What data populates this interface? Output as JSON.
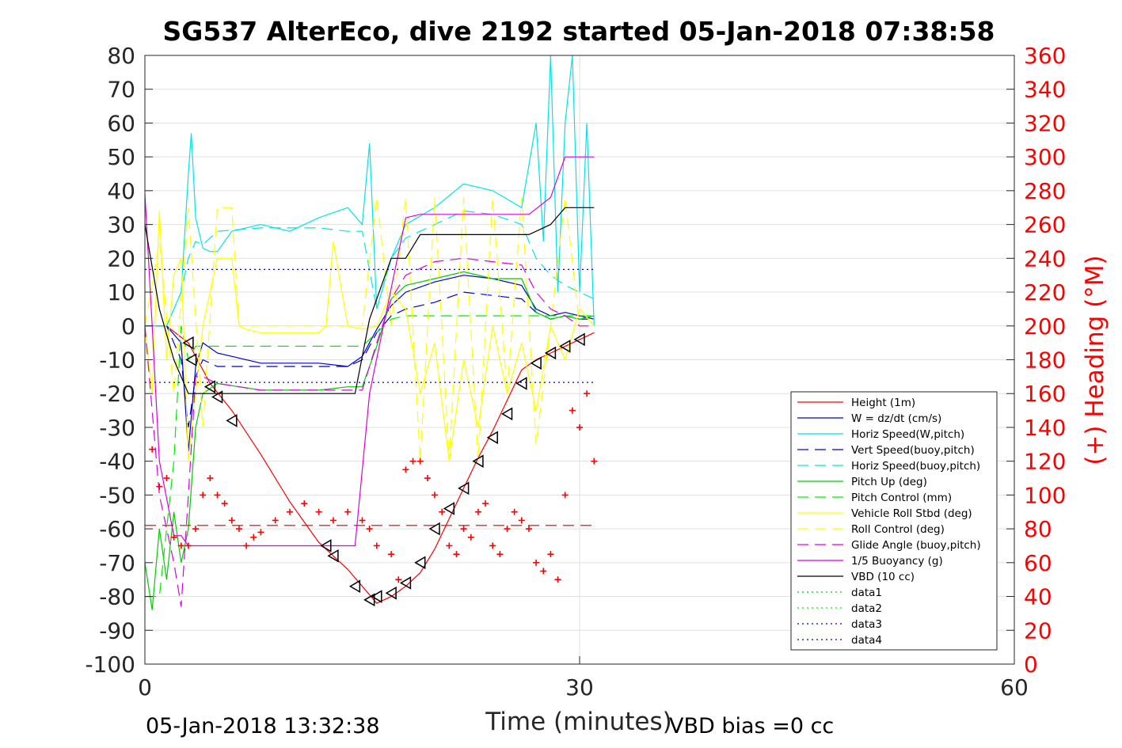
{
  "chart_data": {
    "type": "line",
    "title": "SG537 AlterEco, dive 2192 started 05-Jan-2018 07:38:58",
    "xlabel": "Time (minutes)",
    "ylabel_right": "(+) Heading (°M)",
    "footer_left": "05-Jan-2018 13:32:38",
    "footer_right": "VBD bias =0 cc",
    "xlim": [
      0,
      60
    ],
    "ylim": [
      -100,
      80
    ],
    "ylim_right": [
      0,
      360
    ],
    "x_ticks": [
      "0",
      "30",
      "60"
    ],
    "y_ticks": [
      "80",
      "70",
      "60",
      "50",
      "40",
      "30",
      "20",
      "10",
      "0",
      "-10",
      "-20",
      "-30",
      "-40",
      "-50",
      "-60",
      "-70",
      "-80",
      "-90",
      "-100"
    ],
    "y_ticks_right": [
      "360",
      "340",
      "320",
      "300",
      "280",
      "260",
      "240",
      "220",
      "200",
      "180",
      "160",
      "140",
      "120",
      "100",
      "80",
      "60",
      "40",
      "20",
      "0"
    ],
    "grid": true,
    "legend_position": "bottom-right",
    "colors": {
      "height": "#ff0000",
      "w": "#0000cc",
      "horiz_speed_w": "#00e5e5",
      "vert_speed_buoy": "#0000cc",
      "horiz_speed_buoy": "#00e5e5",
      "pitch_up": "#00cc00",
      "pitch_control": "#00ee00",
      "vehicle_roll": "#ffff00",
      "roll_control": "#ffff00",
      "glide_angle": "#dd00dd",
      "buoyancy": "#dd00dd",
      "vbd": "#000000",
      "heading": "#ff0000"
    },
    "legend": [
      {
        "label": "Height (1m)",
        "color": "#ff0000",
        "dash": "solid"
      },
      {
        "label": "W = dz/dt (cm/s)",
        "color": "#0000cc",
        "dash": "solid"
      },
      {
        "label": "Horiz Speed(W,pitch)",
        "color": "#00e5e5",
        "dash": "solid"
      },
      {
        "label": "Vert Speed(buoy,pitch)",
        "color": "#0000cc",
        "dash": "dashed"
      },
      {
        "label": "Horiz Speed(buoy,pitch)",
        "color": "#00e5e5",
        "dash": "dashed"
      },
      {
        "label": "Pitch Up (deg)",
        "color": "#00cc00",
        "dash": "solid"
      },
      {
        "label": "Pitch Control (mm)",
        "color": "#00ee00",
        "dash": "dashed"
      },
      {
        "label": "Vehicle Roll Stbd (deg)",
        "color": "#ffff00",
        "dash": "solid"
      },
      {
        "label": "Roll Control (deg)",
        "color": "#ffff00",
        "dash": "dashed"
      },
      {
        "label": "Glide Angle (buoy,pitch)",
        "color": "#dd00dd",
        "dash": "dashed"
      },
      {
        "label": "1/5 Buoyancy (g)",
        "color": "#dd00dd",
        "dash": "solid"
      },
      {
        "label": "VBD (10 cc)",
        "color": "#000000",
        "dash": "solid"
      },
      {
        "label": "data1",
        "color": "#00cc00",
        "dash": "dotted"
      },
      {
        "label": "data2",
        "color": "#00ee00",
        "dash": "dotted"
      },
      {
        "label": "data3",
        "color": "#0000cc",
        "dash": "dotted"
      },
      {
        "label": "data4",
        "color": "#0000cc",
        "dash": "dotted"
      }
    ],
    "series": [
      {
        "key": "height",
        "dash": "solid",
        "color": "#ff0000",
        "x": [
          0,
          1.5,
          3,
          4.5,
          6,
          8,
          10,
          12,
          14,
          15,
          16,
          17,
          18,
          19,
          20,
          21,
          22,
          23,
          24,
          25,
          26,
          27,
          28,
          29,
          30,
          31
        ],
        "y": [
          0,
          0,
          -5,
          -17,
          -25,
          -38,
          -52,
          -64,
          -72,
          -77,
          -82,
          -80,
          -77,
          -73,
          -66,
          -57,
          -48,
          -39,
          -31,
          -22,
          -13,
          -10,
          -8,
          -6,
          -4,
          -2
        ]
      },
      {
        "key": "w",
        "dash": "solid",
        "color": "#0000cc",
        "x": [
          0,
          1.5,
          2.5,
          3,
          3.5,
          4,
          5,
          8,
          12,
          14,
          15,
          16,
          17,
          18,
          20,
          22,
          24,
          26,
          27,
          28,
          29,
          30,
          31
        ],
        "y": [
          0,
          0,
          -5,
          -37,
          -12,
          -5,
          -8,
          -11,
          -11,
          -12,
          -9,
          -1,
          6,
          10,
          13,
          15,
          14,
          12,
          5,
          3,
          4,
          3,
          2
        ]
      },
      {
        "key": "horiz_speed_w",
        "dash": "solid",
        "color": "#00e5e5",
        "x": [
          0,
          1.5,
          2.5,
          3,
          3.2,
          3.5,
          4,
          4.5,
          5,
          6,
          8,
          10,
          12,
          14,
          15,
          15.5,
          16,
          17,
          18,
          20,
          22,
          24,
          26,
          27,
          27.5,
          28,
          28.5,
          29,
          29.5,
          30,
          30.5,
          31
        ],
        "y": [
          0,
          0,
          10,
          45,
          57,
          32,
          23,
          22,
          22,
          28,
          30,
          28,
          32,
          35,
          30,
          54,
          5,
          20,
          30,
          35,
          42,
          40,
          35,
          60,
          25,
          80,
          10,
          60,
          80,
          10,
          60,
          0
        ]
      },
      {
        "key": "vert_speed_buoy",
        "dash": "dashed",
        "color": "#0000cc",
        "x": [
          0,
          1.5,
          2.5,
          3,
          3.5,
          4,
          5,
          8,
          12,
          14,
          15,
          16,
          17,
          18,
          20,
          22,
          24,
          26,
          27,
          28,
          29,
          30,
          31
        ],
        "y": [
          0,
          0,
          -10,
          -30,
          -15,
          -10,
          -12,
          -12,
          -12,
          -12,
          -10,
          -2,
          3,
          5,
          7,
          10,
          9,
          8,
          4,
          2,
          3,
          2,
          2
        ]
      },
      {
        "key": "horiz_speed_buoy",
        "dash": "dashed",
        "color": "#00e5e5",
        "x": [
          0,
          1.5,
          2.5,
          3,
          3.5,
          4,
          5,
          8,
          12,
          14,
          15,
          16,
          17,
          18,
          20,
          22,
          24,
          26,
          27,
          28,
          29,
          30,
          31
        ],
        "y": [
          0,
          0,
          10,
          20,
          25,
          24,
          28,
          29,
          29,
          28,
          28,
          5,
          20,
          26,
          30,
          34,
          33,
          30,
          20,
          15,
          12,
          10,
          8
        ]
      },
      {
        "key": "pitch_up",
        "dash": "solid",
        "color": "#00cc00",
        "x": [
          0,
          0.5,
          1,
          1.5,
          2,
          2.5,
          3,
          3.5,
          4,
          5,
          8,
          12,
          14,
          15,
          16,
          17,
          18,
          20,
          22,
          24,
          26,
          27,
          28,
          29,
          30,
          31
        ],
        "y": [
          -70,
          -84,
          -60,
          -75,
          -55,
          -70,
          -60,
          -30,
          -20,
          -17,
          -19,
          -19,
          -18,
          -18,
          -6,
          8,
          12,
          14,
          16,
          14,
          14,
          4,
          2,
          3,
          2,
          3
        ]
      },
      {
        "key": "pitch_control",
        "dash": "dashed",
        "color": "#00ee00",
        "x": [
          0,
          1,
          2,
          2.5,
          3,
          3.5,
          4,
          5,
          8,
          12,
          14,
          15,
          16,
          17,
          18,
          20,
          22,
          24,
          26,
          27,
          28,
          29,
          30,
          31
        ],
        "y": [
          -80,
          -80,
          -40,
          0,
          -10,
          -6,
          -6,
          -6,
          -6,
          -6,
          -6,
          -6,
          -2,
          2,
          3,
          3,
          3,
          3,
          3,
          3,
          3,
          3,
          3,
          3
        ]
      },
      {
        "key": "vehicle_roll",
        "dash": "solid",
        "color": "#ffff00",
        "x": [
          0,
          0.5,
          1,
          1.5,
          2,
          2.5,
          3,
          4,
          5,
          6,
          6.5,
          7,
          8,
          10,
          12,
          12.5,
          13,
          14,
          15,
          16,
          17,
          18,
          19,
          20,
          21,
          22,
          23,
          24,
          25,
          26,
          27,
          28,
          29,
          30,
          31
        ],
        "y": [
          0,
          -20,
          34,
          -10,
          15,
          20,
          -40,
          0,
          20,
          20,
          0,
          -1,
          -2,
          -2,
          -2,
          0,
          25,
          0,
          -1,
          0,
          10,
          5,
          -20,
          -5,
          -40,
          -10,
          -30,
          0,
          -20,
          -5,
          -25,
          0,
          -10,
          5,
          0
        ]
      },
      {
        "key": "roll_control",
        "dash": "dashed",
        "color": "#ffff00",
        "x": [
          0,
          1,
          2,
          3,
          4,
          5,
          6,
          6.5,
          7,
          8,
          10,
          12,
          13,
          14,
          15,
          16,
          17,
          18,
          19,
          20,
          21,
          22,
          23,
          24,
          25,
          26,
          27,
          28,
          29,
          30,
          31
        ],
        "y": [
          0,
          25,
          -20,
          35,
          -30,
          35,
          35,
          0,
          0,
          0,
          0,
          0,
          0,
          0,
          0,
          38,
          0,
          38,
          -40,
          38,
          -40,
          38,
          -40,
          38,
          -20,
          38,
          -35,
          0,
          38,
          0,
          0
        ]
      },
      {
        "key": "glide_angle",
        "dash": "dashed",
        "color": "#dd00dd",
        "x": [
          0,
          1,
          2,
          2.5,
          3,
          3.5,
          4,
          5,
          8,
          12,
          14,
          15,
          16,
          17,
          18,
          20,
          22,
          24,
          26,
          27,
          28,
          29,
          30,
          31
        ],
        "y": [
          0,
          -50,
          -70,
          -83,
          -50,
          -15,
          -15,
          -17,
          -19,
          -19,
          -19,
          -19,
          -5,
          8,
          15,
          19,
          20,
          19,
          18,
          10,
          5,
          3,
          0,
          0
        ]
      },
      {
        "key": "buoyancy",
        "dash": "solid",
        "color": "#dd00dd",
        "x": [
          0,
          0.5,
          1,
          2,
          2.5,
          3,
          3.5,
          4,
          14.5,
          15.5,
          18,
          19,
          26.5,
          28,
          29,
          31
        ],
        "y": [
          39,
          0,
          -40,
          -62,
          -62,
          -65,
          -65,
          -65,
          -65,
          -20,
          32,
          33,
          33,
          38,
          50,
          50
        ]
      },
      {
        "key": "vbd",
        "dash": "solid",
        "color": "#000000",
        "x": [
          0,
          1,
          2,
          3,
          3.2,
          14.5,
          15.5,
          17,
          18,
          19,
          26.5,
          28,
          29,
          31
        ],
        "y": [
          30,
          5,
          -10,
          -20,
          -20,
          -20,
          2,
          20,
          20,
          27,
          27,
          30,
          35,
          35
        ]
      },
      {
        "key": "data1",
        "dash": "dotted",
        "color": "#0000cc",
        "x": [
          0,
          31
        ],
        "y": [
          16.7,
          16.7
        ]
      },
      {
        "key": "data2",
        "dash": "dotted",
        "color": "#0000cc",
        "x": [
          0,
          31
        ],
        "y": [
          -16.7,
          -16.7
        ]
      },
      {
        "key": "avg_heading",
        "dash": "dashed",
        "color": "#cc0000",
        "axis": "right",
        "x": [
          0,
          31
        ],
        "y": [
          82,
          82
        ]
      }
    ],
    "markers": {
      "triangles": {
        "x": [
          3,
          3.2,
          4.5,
          5,
          6,
          12.5,
          13,
          14.5,
          15.5,
          16,
          17,
          18,
          19,
          20,
          21,
          22,
          23,
          24,
          25,
          26,
          27,
          28,
          29,
          30
        ],
        "y": [
          -5,
          -10,
          -18,
          -21,
          -28,
          -65,
          -68,
          -77,
          -81,
          -80,
          -79,
          -76,
          -70,
          -60,
          -54,
          -48,
          -40,
          -33,
          -26,
          -17,
          -11,
          -8,
          -6,
          -4
        ]
      },
      "heading": {
        "axis": "right",
        "x": [
          0.5,
          1,
          1.5,
          2,
          2.5,
          3,
          3.5,
          4,
          4.5,
          5,
          5.5,
          6,
          6.5,
          7,
          7.5,
          8,
          9,
          10,
          11,
          12,
          13,
          14,
          15,
          15.5,
          16,
          17,
          17.5,
          18,
          18.5,
          19,
          19.5,
          20,
          20.5,
          21,
          21.5,
          22,
          22.5,
          23,
          23.5,
          24,
          24.5,
          25,
          25.5,
          26,
          26.5,
          27,
          27.5,
          28,
          28.5,
          29,
          29.5,
          30,
          30.5,
          31
        ],
        "y": [
          127,
          105,
          110,
          75,
          70,
          70,
          80,
          100,
          110,
          100,
          95,
          85,
          80,
          70,
          75,
          78,
          85,
          90,
          95,
          90,
          85,
          90,
          85,
          80,
          70,
          65,
          50,
          115,
          120,
          120,
          110,
          100,
          90,
          70,
          65,
          80,
          75,
          90,
          95,
          70,
          65,
          80,
          90,
          85,
          80,
          60,
          55,
          65,
          50,
          100,
          150,
          140,
          160,
          120
        ]
      }
    }
  }
}
